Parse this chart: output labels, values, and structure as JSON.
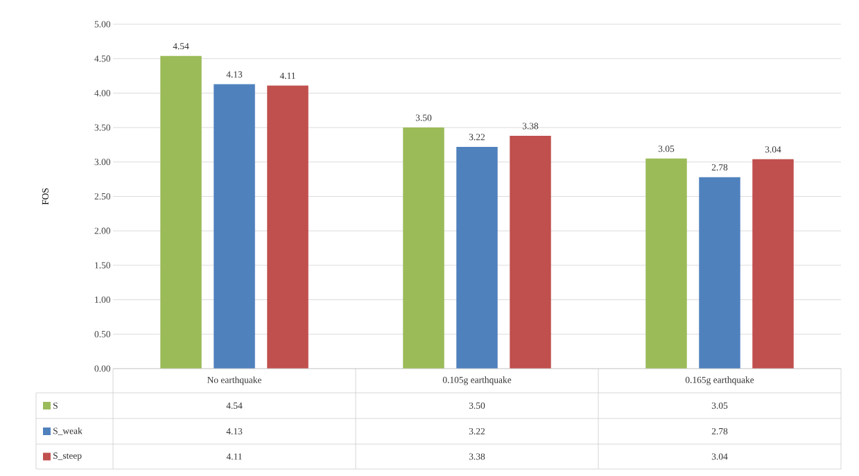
{
  "chart_data": {
    "type": "bar",
    "ylabel": "FOS",
    "categories": [
      "No earthquake",
      "0.105g earthquake",
      "0.165g earthquake"
    ],
    "series": [
      {
        "name": "S",
        "color": "#9bbb59",
        "values": [
          4.54,
          3.5,
          3.05
        ],
        "value_labels": [
          "4.54",
          "3.50",
          "3.05"
        ]
      },
      {
        "name": "S_weak",
        "color": "#4f81bd",
        "values": [
          4.13,
          3.22,
          2.78
        ],
        "value_labels": [
          "4.13",
          "3.22",
          "2.78"
        ]
      },
      {
        "name": "S_steep",
        "color": "#c0504d",
        "values": [
          4.11,
          3.38,
          3.04
        ],
        "value_labels": [
          "4.11",
          "3.38",
          "3.04"
        ]
      }
    ],
    "ylim": [
      0,
      5
    ],
    "yticks": [
      {
        "value": 0,
        "label": "0.00"
      },
      {
        "value": 0.5,
        "label": "0.50"
      },
      {
        "value": 1,
        "label": "1.00"
      },
      {
        "value": 1.5,
        "label": "1.50"
      },
      {
        "value": 2,
        "label": "2.00"
      },
      {
        "value": 2.5,
        "label": "2.50"
      },
      {
        "value": 3,
        "label": "3.00"
      },
      {
        "value": 3.5,
        "label": "3.50"
      },
      {
        "value": 4,
        "label": "4.00"
      },
      {
        "value": 4.5,
        "label": "4.50"
      },
      {
        "value": 5,
        "label": "5.00"
      }
    ],
    "grid": "y",
    "legend": "bottom"
  }
}
